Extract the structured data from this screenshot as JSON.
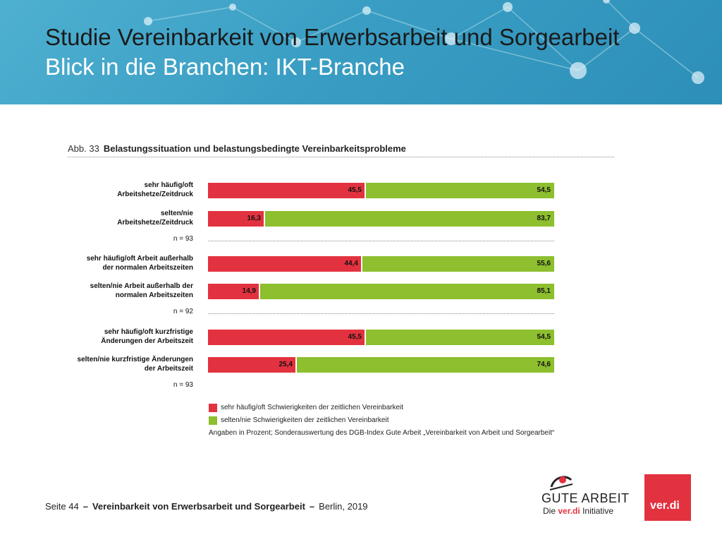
{
  "header": {
    "title_line1": "Studie Vereinbarkeit von Erwerbsarbeit und Sorgearbeit",
    "title_line2": "Blick in die Branchen: IKT-Branche"
  },
  "figure": {
    "number": "Abb. 33",
    "title": "Belastungssituation und belastungsbedingte Vereinbarkeitsprobleme"
  },
  "chart_data": {
    "type": "bar",
    "orientation": "horizontal",
    "stacked": true,
    "categories": [
      [
        "sehr häufig/oft",
        "Arbeitshetze/Zeitdruck"
      ],
      [
        "selten/nie",
        "Arbeitshetze/Zeitdruck"
      ],
      [
        "sehr häufig/oft Arbeit außerhalb",
        "der normalen Arbeitszeiten"
      ],
      [
        "selten/nie Arbeit außerhalb der",
        "normalen Arbeitszeiten"
      ],
      [
        "sehr häufig/oft kurzfristige",
        "Änderungen der Arbeitszeit"
      ],
      [
        "selten/nie kurzfristige Änderungen",
        "der Arbeitszeit"
      ]
    ],
    "groups_n": [
      "n = 93",
      "n = 92",
      "n = 93"
    ],
    "series": [
      {
        "name": "sehr häufig/oft Schwierigkeiten der zeitlichen Vereinbarkeit",
        "color": "#e3323f",
        "values": [
          45.5,
          16.3,
          44.4,
          14.9,
          45.5,
          25.4
        ],
        "labels": [
          "45,5",
          "16,3",
          "44,4",
          "14,9",
          "45,5",
          "25,4"
        ]
      },
      {
        "name": "selten/nie Schwierigkeiten der zeitlichen Vereinbarkeit",
        "color": "#8dbf2e",
        "values": [
          54.5,
          83.7,
          55.6,
          85.1,
          54.5,
          74.6
        ],
        "labels": [
          "54,5",
          "83,7",
          "55,6",
          "85,1",
          "54,5",
          "74,6"
        ]
      }
    ],
    "xlim": [
      0,
      100
    ],
    "note": "Angaben in Prozent; Sonderauswertung des DGB-Index Gute Arbeit „Vereinbarkeit von Arbeit und Sorgearbeit“"
  },
  "footer": {
    "page": "Seite 44",
    "title": "Vereinbarkeit von Erwerbsarbeit und Sorgearbeit",
    "place_year": "Berlin, 2019"
  },
  "logos": {
    "gute_arbeit": "GUTE ARBEIT",
    "die": "Die",
    "verdi_word": "ver.di",
    "initiative": "Initiative",
    "verdi": "ver.di"
  }
}
